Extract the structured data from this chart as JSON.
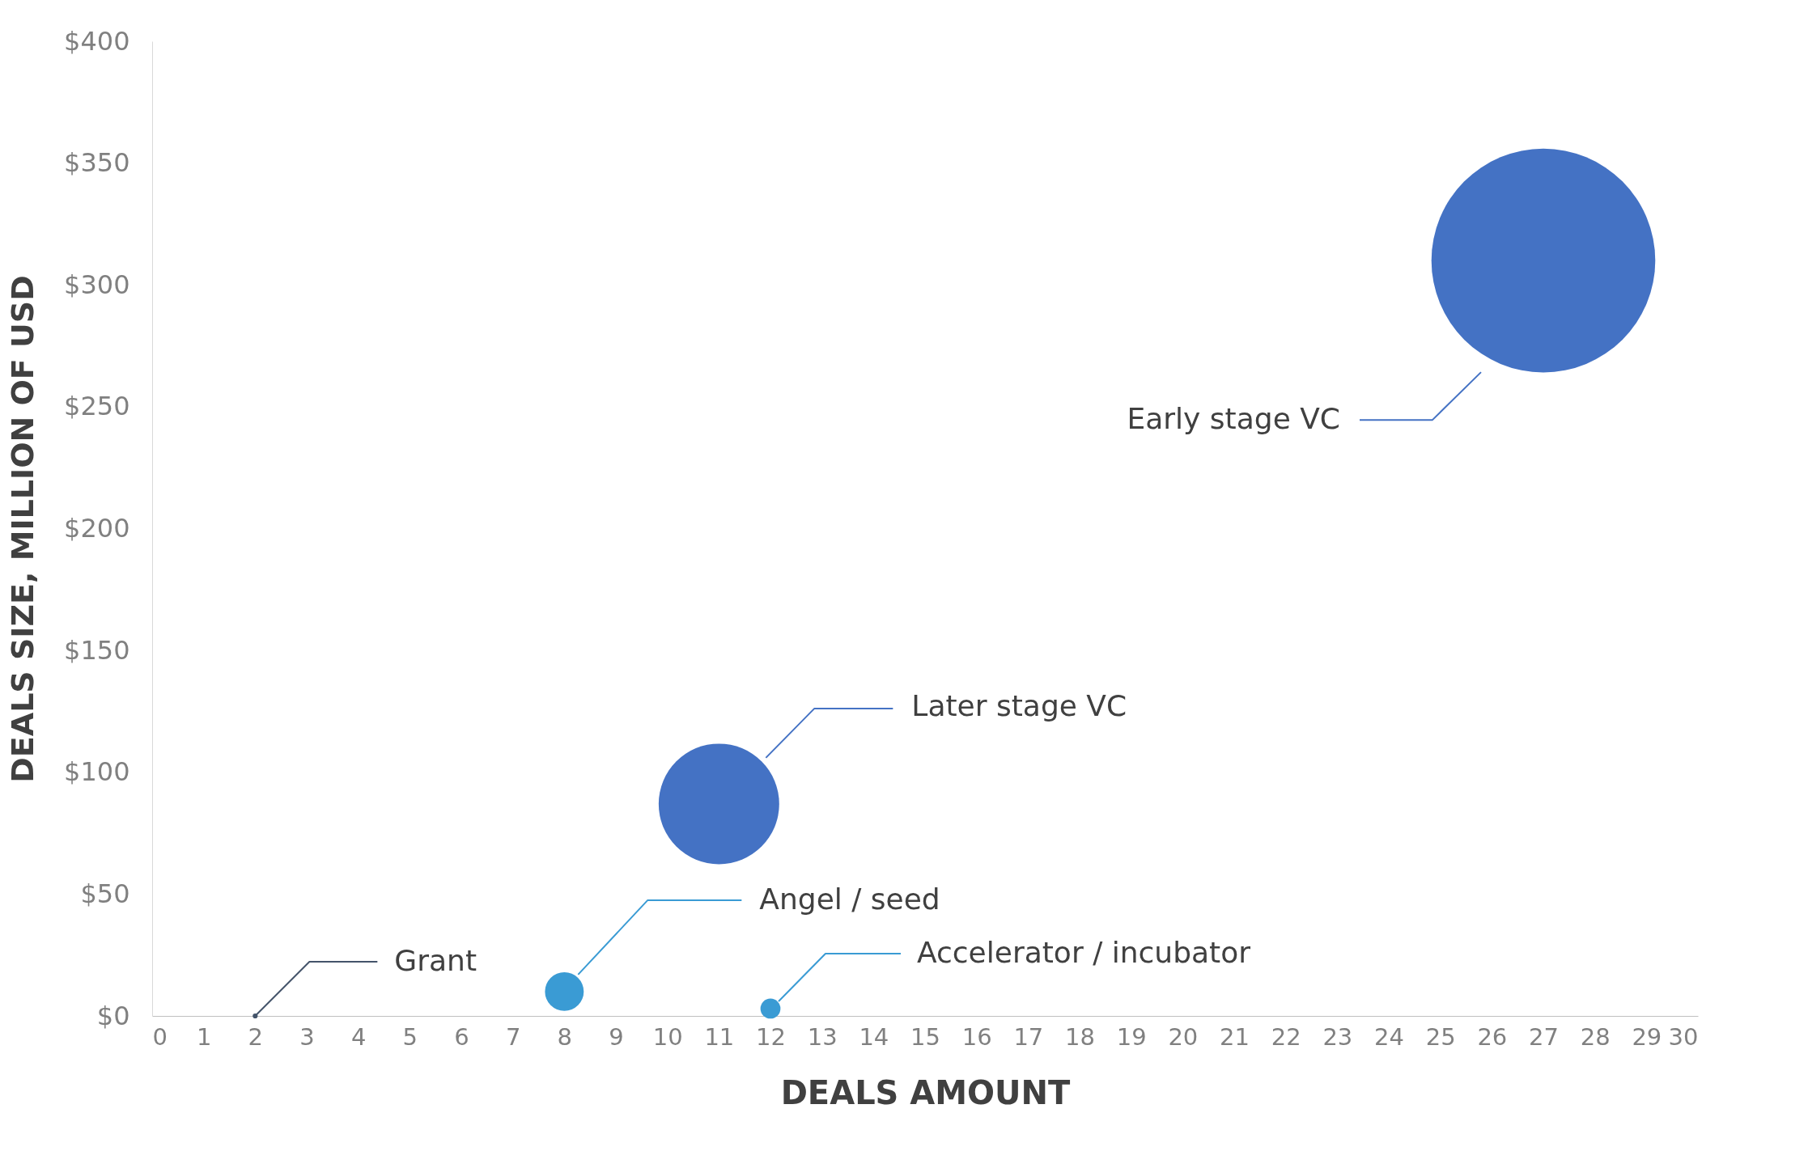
{
  "chart_data": {
    "type": "bubble",
    "xlabel": "DEALS AMOUNT",
    "ylabel": "DEALS SIZE, MILLION OF USD",
    "xlim": [
      0,
      30
    ],
    "xticks": [
      0,
      1,
      2,
      3,
      4,
      5,
      6,
      7,
      8,
      9,
      10,
      11,
      12,
      13,
      14,
      15,
      16,
      17,
      18,
      19,
      20,
      21,
      22,
      23,
      24,
      25,
      26,
      27,
      28,
      29,
      30
    ],
    "ylim": [
      0,
      400
    ],
    "yticks": [
      {
        "value": 0,
        "label": "$0"
      },
      {
        "value": 50,
        "label": "$50"
      },
      {
        "value": 100,
        "label": "$100"
      },
      {
        "value": 150,
        "label": "$150"
      },
      {
        "value": 200,
        "label": "$200"
      },
      {
        "value": 250,
        "label": "$250"
      },
      {
        "value": 300,
        "label": "$300"
      },
      {
        "value": 350,
        "label": "$350"
      },
      {
        "value": 400,
        "label": "$400"
      }
    ],
    "grid": false,
    "legend": false,
    "series": [
      {
        "name": "Early stage VC",
        "color": "#4472c4",
        "x": [
          27
        ],
        "values": [
          310
        ],
        "sizes": [
          1
        ]
      },
      {
        "name": "Later stage VC",
        "color": "#4472c4",
        "x": [
          11
        ],
        "values": [
          87
        ],
        "sizes": [
          0.29
        ]
      },
      {
        "name": "Angel / seed",
        "color": "#3a9bd4",
        "x": [
          8
        ],
        "values": [
          10
        ],
        "sizes": [
          0.03
        ]
      },
      {
        "name": "Accelerator / incubator",
        "color": "#3a9bd4",
        "x": [
          12
        ],
        "values": [
          3
        ],
        "sizes": [
          0.008
        ]
      },
      {
        "name": "Grant",
        "color": "#44546a",
        "x": [
          2
        ],
        "values": [
          0
        ],
        "sizes": [
          0.0005
        ]
      }
    ]
  }
}
